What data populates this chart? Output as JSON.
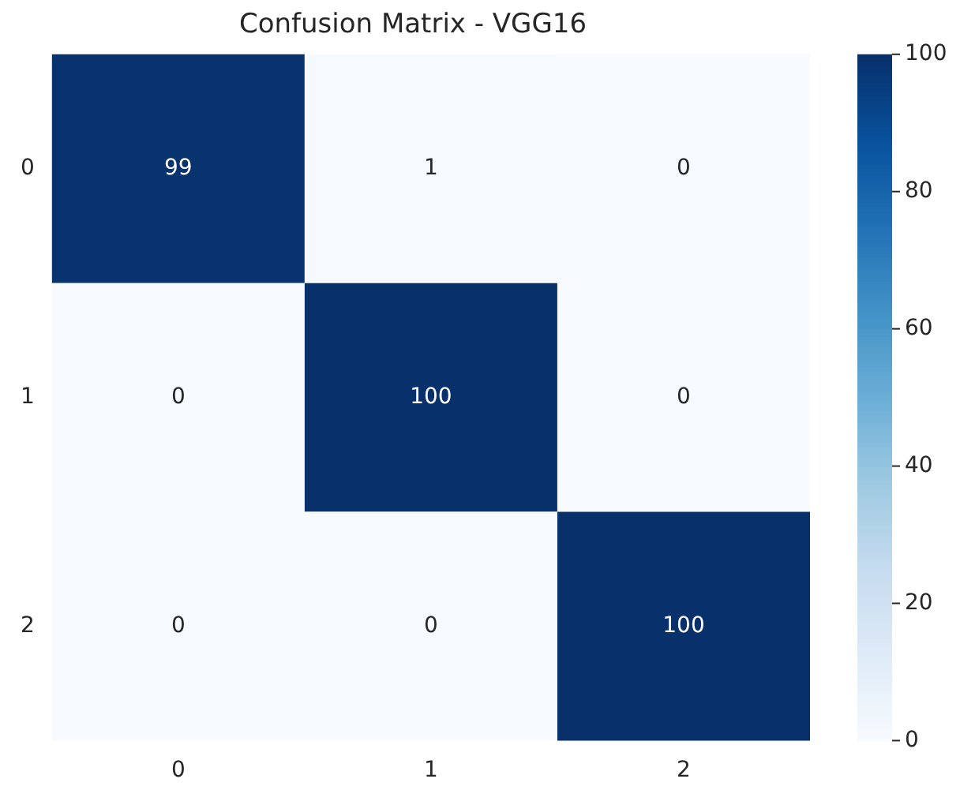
{
  "chart_data": {
    "type": "heatmap",
    "title": "Confusion Matrix - VGG16",
    "categories": [
      "0",
      "1",
      "2"
    ],
    "y_categories": [
      "0",
      "1",
      "2"
    ],
    "cells": [
      [
        99,
        1,
        0
      ],
      [
        0,
        100,
        0
      ],
      [
        0,
        0,
        100
      ]
    ],
    "clim": [
      0,
      100
    ],
    "cticks": [
      0,
      20,
      40,
      60,
      80,
      100
    ],
    "data_labels": true
  }
}
